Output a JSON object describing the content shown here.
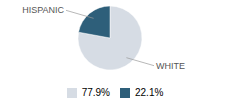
{
  "chart_data": {
    "type": "pie",
    "categories": [
      "WHITE",
      "HISPANIC"
    ],
    "values": [
      77.9,
      22.1
    ],
    "value_labels": [
      "77.9%",
      "22.1%"
    ],
    "colors": [
      "#d6dce4",
      "#2e5f7a"
    ],
    "legend": "bottom"
  }
}
